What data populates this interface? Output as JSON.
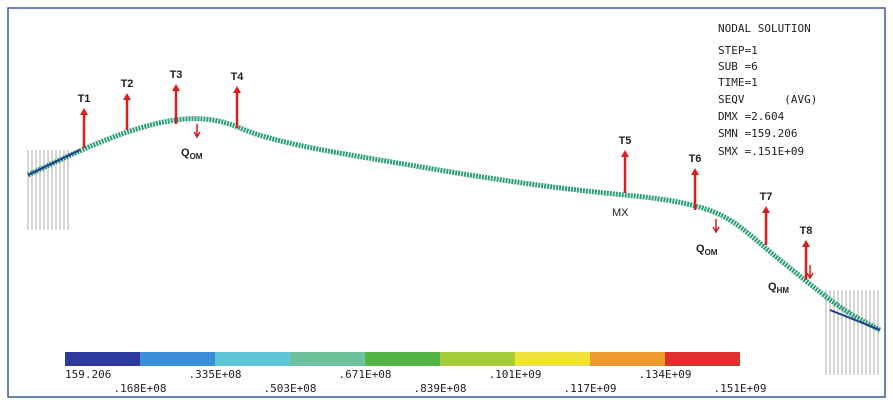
{
  "info": {
    "title": "NODAL SOLUTION",
    "lines": [
      "STEP=1",
      "SUB =6",
      "TIME=1",
      "SEQV      (AVG)",
      "DMX =2.604",
      "SMN =159.206",
      "SMX =.151E+09"
    ]
  },
  "loads": [
    "T1",
    "T2",
    "T3",
    "T4",
    "T5",
    "T6",
    "T7",
    "T8"
  ],
  "distributed": [
    {
      "text": "Q",
      "sub": "OM"
    },
    {
      "text": "Q",
      "sub": "OM"
    },
    {
      "text": "Q",
      "sub": "HM"
    }
  ],
  "max_marker": "MX",
  "legend": {
    "colors": [
      "#2b3a9c",
      "#3b8fd6",
      "#5ec6d6",
      "#6cc29c",
      "#52b545",
      "#a6cc3a",
      "#efe23a",
      "#ee9a2e",
      "#e0302e"
    ],
    "labels": [
      "159.206",
      ".168E+08",
      ".335E+08",
      ".503E+08",
      ".671E+08",
      ".839E+08",
      ".101E+09",
      ".117E+09",
      ".134E+09",
      ".151E+09"
    ]
  }
}
